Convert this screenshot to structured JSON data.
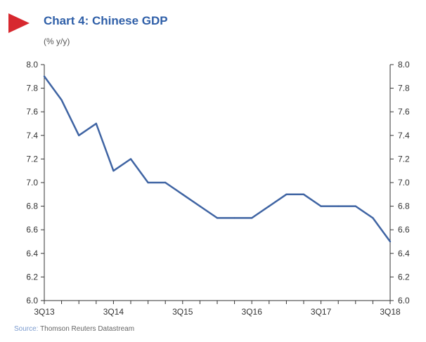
{
  "header": {
    "title": "Chart 4: Chinese GDP",
    "subtitle": "(% y/y)"
  },
  "footer": {
    "source_label": "Source:",
    "source_text": "Thomson Reuters Datastream"
  },
  "colors": {
    "line": "#3f64a3",
    "axis": "#333333",
    "marker": "#d7282f",
    "title": "#2f5fa8"
  },
  "chart_data": {
    "type": "line",
    "title": "Chart 4: Chinese GDP",
    "ylabel": "(% y/y)",
    "xlabel": "",
    "ylim": [
      6.0,
      8.0
    ],
    "yticks": [
      "6.0",
      "6.2",
      "6.4",
      "6.6",
      "6.8",
      "7.0",
      "7.2",
      "7.4",
      "7.6",
      "7.8",
      "8.0"
    ],
    "xticks": [
      "3Q13",
      "3Q14",
      "3Q15",
      "3Q16",
      "3Q17",
      "3Q18"
    ],
    "grid": false,
    "legend": "none",
    "series": [
      {
        "x": [
          "3Q13",
          "4Q13",
          "1Q14",
          "2Q14",
          "3Q14",
          "4Q14",
          "1Q15",
          "2Q15",
          "3Q15",
          "4Q15",
          "1Q16",
          "2Q16",
          "3Q16",
          "4Q16",
          "1Q17",
          "2Q17",
          "3Q17",
          "4Q17",
          "1Q18",
          "2Q18",
          "3Q18"
        ],
        "values": [
          7.9,
          7.7,
          7.4,
          7.5,
          7.1,
          7.2,
          7.0,
          7.0,
          6.9,
          6.8,
          6.7,
          6.7,
          6.7,
          6.8,
          6.9,
          6.9,
          6.8,
          6.8,
          6.8,
          6.7,
          6.5
        ]
      }
    ]
  }
}
